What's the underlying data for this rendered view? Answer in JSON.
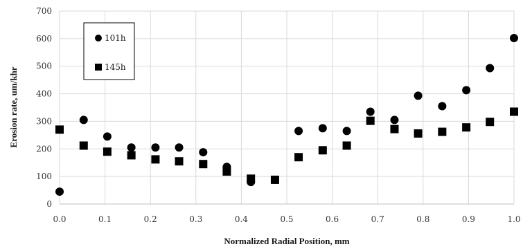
{
  "chart_data": {
    "type": "scatter",
    "title": "",
    "xlabel": "Normalized Radial Position, mm",
    "ylabel": "Erosion rate, um/khr",
    "xlim": [
      0,
      1
    ],
    "ylim": [
      0,
      700
    ],
    "x_ticks": [
      0.0,
      0.1,
      0.2,
      0.3,
      0.4,
      0.5,
      0.6,
      0.7,
      0.8,
      0.9,
      1.0
    ],
    "x_tick_labels": [
      "0.0",
      "0.1",
      "0.2",
      "0.3",
      "0.4",
      "0.5",
      "0.6",
      "0.7",
      "0.8",
      "0.9",
      "1.0"
    ],
    "y_ticks": [
      0,
      100,
      200,
      300,
      400,
      500,
      600,
      700
    ],
    "y_tick_labels": [
      "0",
      "100",
      "200",
      "300",
      "400",
      "500",
      "600",
      "700"
    ],
    "grid": true,
    "legend_position": "top-left",
    "series": [
      {
        "name": "101h",
        "marker": "circle",
        "color": "#000000",
        "points": [
          [
            0.0,
            45
          ],
          [
            0.053,
            305
          ],
          [
            0.105,
            245
          ],
          [
            0.158,
            205
          ],
          [
            0.211,
            205
          ],
          [
            0.263,
            205
          ],
          [
            0.316,
            188
          ],
          [
            0.368,
            135
          ],
          [
            0.421,
            80
          ],
          [
            0.474,
            88
          ],
          [
            0.526,
            265
          ],
          [
            0.579,
            275
          ],
          [
            0.632,
            265
          ],
          [
            0.684,
            335
          ],
          [
            0.737,
            305
          ],
          [
            0.789,
            393
          ],
          [
            0.842,
            355
          ],
          [
            0.895,
            413
          ],
          [
            0.947,
            493
          ],
          [
            1.0,
            602
          ]
        ]
      },
      {
        "name": "145h",
        "marker": "square",
        "color": "#000000",
        "points": [
          [
            0.0,
            270
          ],
          [
            0.053,
            212
          ],
          [
            0.105,
            190
          ],
          [
            0.158,
            177
          ],
          [
            0.211,
            162
          ],
          [
            0.263,
            155
          ],
          [
            0.316,
            145
          ],
          [
            0.368,
            118
          ],
          [
            0.421,
            92
          ],
          [
            0.474,
            88
          ],
          [
            0.526,
            170
          ],
          [
            0.579,
            195
          ],
          [
            0.632,
            212
          ],
          [
            0.684,
            302
          ],
          [
            0.737,
            272
          ],
          [
            0.789,
            256
          ],
          [
            0.842,
            262
          ],
          [
            0.895,
            278
          ],
          [
            0.947,
            298
          ],
          [
            1.0,
            335
          ]
        ]
      }
    ]
  }
}
